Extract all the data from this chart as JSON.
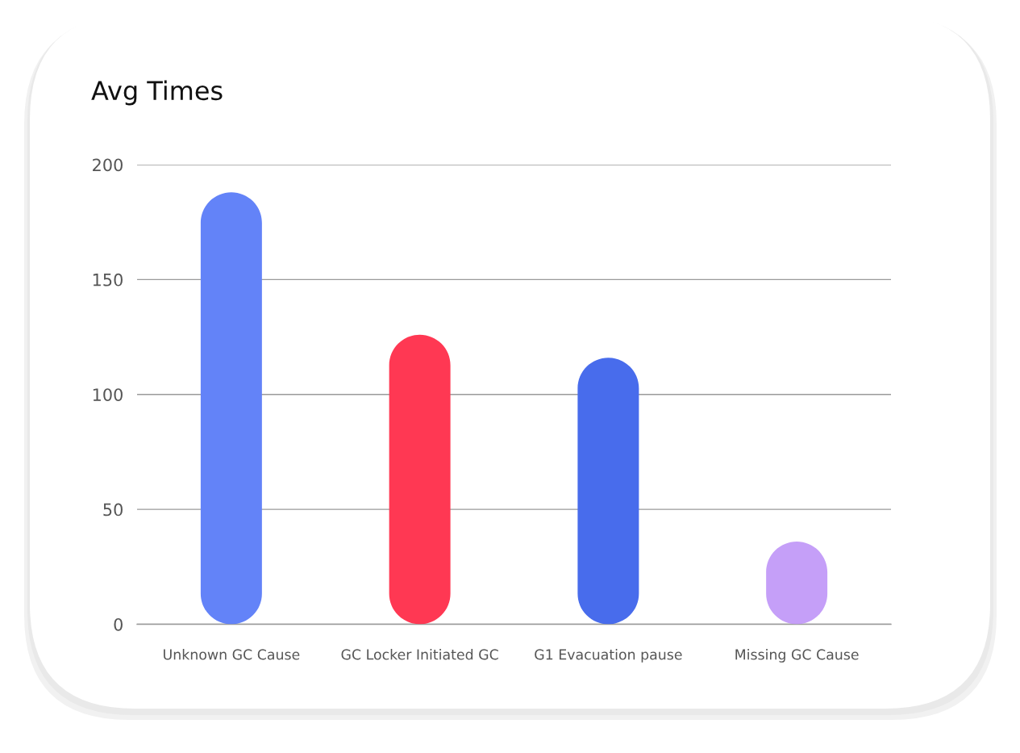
{
  "chart_data": {
    "type": "bar",
    "title": "Avg Times",
    "categories": [
      "Unknown GC Cause",
      "GC Locker Initiated GC",
      "G1 Evacuation pause",
      "Missing GC Cause"
    ],
    "values": [
      188,
      126,
      116,
      36
    ],
    "colors": [
      "#6383f8",
      "#ff3853",
      "#486cec",
      "#c59ff8"
    ],
    "ylim": [
      0,
      200
    ],
    "yticks": [
      0,
      50,
      100,
      150,
      200
    ],
    "grid": "y"
  }
}
